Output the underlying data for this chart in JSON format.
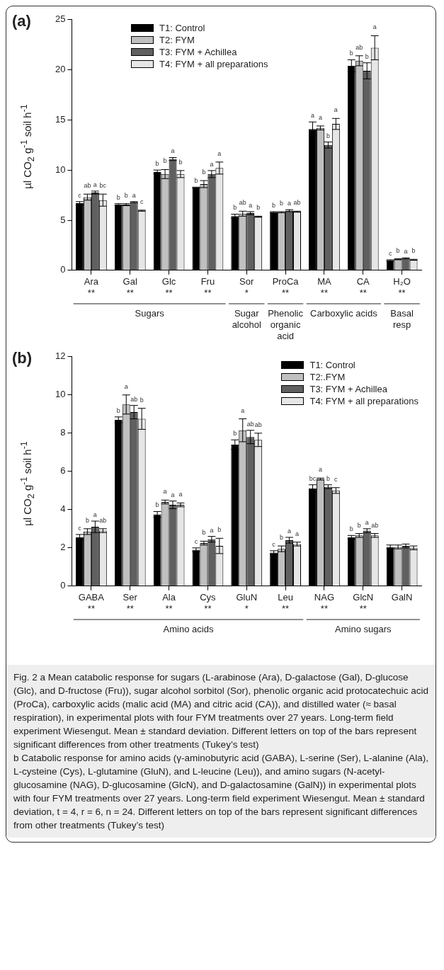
{
  "chart_data": [
    {
      "type": "bar",
      "title": "(a)",
      "ylabel": "µl CO$_{2}$ g$^{-1}$ soil h$^{-1}$",
      "categories": [
        "Ara\n**",
        "Gal\n**",
        "Glc\n**",
        "Fru\n**",
        "Sor\n*",
        "ProCa\n**",
        "MA\n**",
        "CA\n**",
        "H₂O\n**"
      ],
      "series": [
        {
          "name": "T1: Control",
          "color": "#000000",
          "values": [
            6.7,
            6.55,
            9.8,
            8.25,
            5.4,
            5.8,
            14.1,
            20.4,
            1.0
          ],
          "errors": [
            0.15,
            0.1,
            0.2,
            0.05,
            0.2,
            0.05,
            0.7,
            0.6,
            0.05
          ],
          "value_labels": [
            "c",
            "b",
            "b",
            "b",
            "b",
            "b",
            "a",
            "b",
            "c"
          ]
        },
        {
          "name": "T2: FYM",
          "color": "#c0c0c0",
          "values": [
            7.3,
            6.55,
            9.6,
            8.6,
            5.65,
            5.8,
            14.2,
            20.9,
            1.1
          ],
          "errors": [
            0.3,
            0.1,
            0.45,
            0.35,
            0.25,
            0.05,
            0.2,
            0.5,
            0.05
          ],
          "value_labels": [
            "ab",
            "b",
            "b",
            "b",
            "ab",
            "b",
            "a",
            "ab",
            "b"
          ]
        },
        {
          "name": "T3: FYM + Achillea",
          "color": "#606060",
          "values": [
            7.75,
            6.8,
            11.1,
            9.6,
            5.7,
            5.95,
            12.5,
            19.9,
            1.2
          ],
          "errors": [
            0.15,
            0.05,
            0.15,
            0.35,
            0.15,
            0.1,
            0.3,
            0.8,
            0.05
          ],
          "value_labels": [
            "a",
            "a",
            "a",
            "a",
            "a",
            "a",
            "b",
            "b",
            "a"
          ]
        },
        {
          "name": "T4: FYM + all preparations",
          "color": "#e6e6e6",
          "values": [
            7.0,
            5.95,
            9.6,
            10.2,
            5.35,
            5.85,
            14.6,
            22.2,
            1.05
          ],
          "errors": [
            0.6,
            0.05,
            0.35,
            0.6,
            0.05,
            0.05,
            0.55,
            1.2,
            0.05
          ],
          "value_labels": [
            "bc",
            "c",
            "b",
            "a",
            "b",
            "ab",
            "a",
            "a",
            "b"
          ]
        }
      ],
      "ylim": [
        0,
        25
      ],
      "yticks": [
        0,
        5,
        10,
        15,
        20,
        25
      ],
      "legend": "top left",
      "annotations": [
        "Sugars",
        "Sugar alcohol",
        "Phenolic organic acid",
        "Carboxylic acids",
        "Basal resp"
      ]
    },
    {
      "type": "bar",
      "title": "(b)",
      "ylabel": "µl CO$_{2}$ g$^{-1}$ soil h$^{-1}$",
      "categories": [
        "GABA\n**",
        "Ser\n**",
        "Ala\n**",
        "Cys\n**",
        "GluN\n*",
        "Leu\n**",
        "NAG\n**",
        "GlcN\n**",
        "GalN"
      ],
      "series": [
        {
          "name": "T1: Control",
          "color": "#000000",
          "values": [
            2.55,
            8.7,
            3.75,
            1.9,
            7.4,
            1.75,
            5.1,
            2.55,
            2.05
          ],
          "errors": [
            0.15,
            0.15,
            0.15,
            0.1,
            0.25,
            0.1,
            0.2,
            0.1,
            0.1
          ],
          "value_labels": [
            "c",
            "b",
            "b",
            "c",
            "b",
            "c",
            "bc",
            "b",
            null
          ]
        },
        {
          "name": "T2:.FYM",
          "color": "#c0c0c0",
          "values": [
            2.85,
            9.5,
            4.4,
            2.25,
            8.15,
            1.95,
            5.6,
            2.65,
            2.05
          ],
          "errors": [
            0.15,
            0.5,
            0.1,
            0.1,
            0.6,
            0.15,
            0.05,
            0.1,
            0.1
          ],
          "value_labels": [
            "b",
            "a",
            "a",
            "b",
            "a",
            "b",
            "a",
            "b",
            null
          ]
        },
        {
          "name": "T3: FYM + Achillea",
          "color": "#606060",
          "values": [
            3.1,
            9.1,
            4.25,
            2.45,
            7.8,
            2.4,
            5.2,
            2.9,
            2.1
          ],
          "errors": [
            0.3,
            0.35,
            0.2,
            0.15,
            0.35,
            0.15,
            0.1,
            0.1,
            0.1
          ],
          "value_labels": [
            "a",
            "ab",
            "a",
            "a",
            "ab",
            "a",
            "b",
            "a",
            null
          ]
        },
        {
          "name": "T4: FYM + all preparations",
          "color": "#e6e6e6",
          "values": [
            2.9,
            8.75,
            4.25,
            2.1,
            7.65,
            2.2,
            5.0,
            2.65,
            2.0
          ],
          "errors": [
            0.1,
            0.55,
            0.1,
            0.4,
            0.35,
            0.1,
            0.15,
            0.1,
            0.1
          ],
          "value_labels": [
            "ab",
            "b",
            "a",
            "b",
            "ab",
            "a",
            "c",
            "ab",
            null
          ]
        }
      ],
      "ylim": [
        0,
        12
      ],
      "yticks": [
        0,
        2,
        4,
        6,
        8,
        10,
        12
      ],
      "legend": "top right",
      "annotations": [
        "Amino acids",
        "Amino sugars",
        "Fig. 2 a Mean catabolic response for sugars (L-arabinose (Ara), D-galactose (Gal), D-glucose (Glc), and D-fructose (Fru)), sugar alcohol sorbitol (Sor), phenolic organic acid protocatechuic acid (ProCa), carboxylic acids (malic acid (MA) and citric acid (CA)), and distilled water (≈ basal respiration), in experimental plots with four FYM treatments over 27 years. Long-term field experiment Wiesengut. Mean ± standard deviation. Different letters on top of the bars represent significant differences from other treatments (Tukey’s test)",
        "b Catabolic response for amino acids (γ-aminobutyric acid (GABA), L-serine (Ser), L-alanine (Ala), L-cysteine (Cys), L-glutamine (GluN), and L-leucine (Leu)), and amino sugars (N-acetyl-glucosamine (NAG), D-glucosamine (GlcN), and D-galactosamine (GalN)) in experimental plots with four FYM treatments over 27 years. Long-term field experiment Wiesengut. Mean ± standard deviation, t = 4, r = 6, n = 24. Different letters on top of the bars represent significant differences from other treatments (Tukey’s test)"
      ]
    }
  ]
}
